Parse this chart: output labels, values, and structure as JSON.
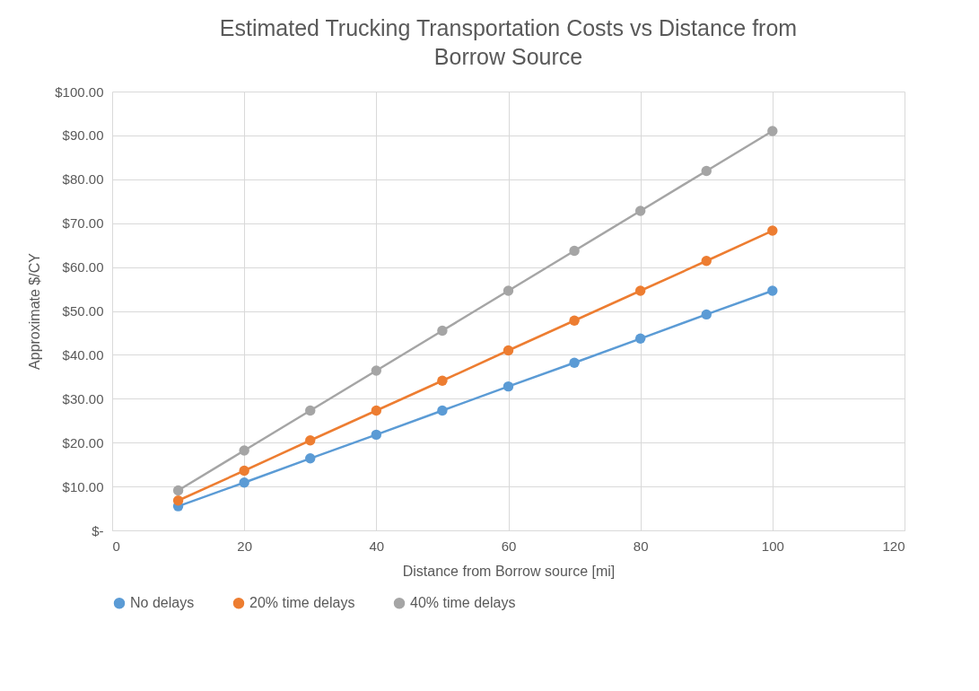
{
  "chart_data": {
    "type": "line",
    "title": "Estimated Trucking Transportation Costs vs Distance from Borrow Source",
    "xlabel": "Distance from Borrow source [mi]",
    "ylabel": "Approximate $/CY",
    "x": [
      10,
      20,
      30,
      40,
      50,
      60,
      70,
      80,
      90,
      100
    ],
    "series": [
      {
        "name": "No delays",
        "color": "#5b9bd5",
        "values": [
          5.5,
          10.9,
          16.4,
          21.8,
          27.3,
          32.8,
          38.2,
          43.7,
          49.2,
          54.6
        ]
      },
      {
        "name": "20% time delays",
        "color": "#ed7d31",
        "values": [
          6.8,
          13.6,
          20.5,
          27.3,
          34.1,
          41.0,
          47.8,
          54.6,
          61.4,
          68.3
        ]
      },
      {
        "name": "40% time delays",
        "color": "#a5a5a5",
        "values": [
          9.1,
          18.2,
          27.3,
          36.4,
          45.5,
          54.6,
          63.7,
          72.8,
          81.9,
          91.0
        ]
      }
    ],
    "xlim": [
      0,
      120
    ],
    "xticks": [
      0,
      20,
      40,
      60,
      80,
      100,
      120
    ],
    "ylim": [
      0,
      100
    ],
    "yticks": [
      {
        "value": 0,
        "label": "$-"
      },
      {
        "value": 10,
        "label": "$10.00"
      },
      {
        "value": 20,
        "label": "$20.00"
      },
      {
        "value": 30,
        "label": "$30.00"
      },
      {
        "value": 40,
        "label": "$40.00"
      },
      {
        "value": 50,
        "label": "$50.00"
      },
      {
        "value": 60,
        "label": "$60.00"
      },
      {
        "value": 70,
        "label": "$70.00"
      },
      {
        "value": 80,
        "label": "$80.00"
      },
      {
        "value": 90,
        "label": "$90.00"
      },
      {
        "value": 100,
        "label": "$100.00"
      }
    ],
    "grid": true,
    "legend": "bottom",
    "marker": "circle",
    "line_style": "solid"
  }
}
